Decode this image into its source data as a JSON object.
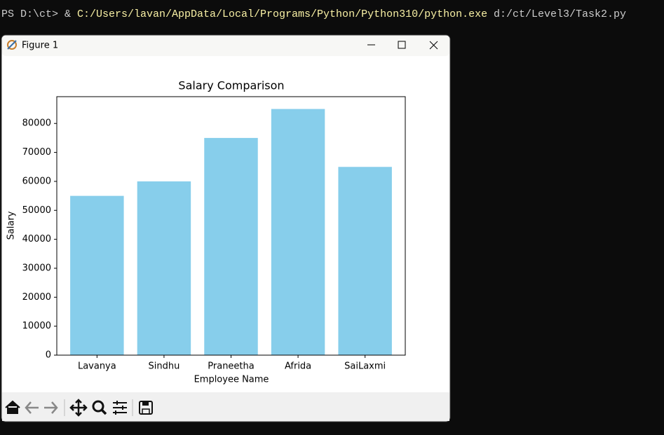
{
  "terminal": {
    "prompt": "PS D:\\ct>",
    "operator": "&",
    "command": "C:/Users/lavan/AppData/Local/Programs/Python/Python310/python.exe",
    "argument": "d:/ct/Level3/Task2.py"
  },
  "window": {
    "title": "Figure 1"
  },
  "chart_data": {
    "type": "bar",
    "title": "Salary Comparison",
    "x_label": "Employee Name",
    "y_label": "Salary",
    "categories": [
      "Lavanya",
      "Sindhu",
      "Praneetha",
      "Afrida",
      "SaiLaxmi"
    ],
    "values": [
      55000,
      60000,
      75000,
      85000,
      65000
    ],
    "color": "#87ceeb",
    "ylim": [
      0,
      89250
    ],
    "yticks": [
      0,
      10000,
      20000,
      30000,
      40000,
      50000,
      60000,
      70000,
      80000
    ],
    "grid": false
  }
}
